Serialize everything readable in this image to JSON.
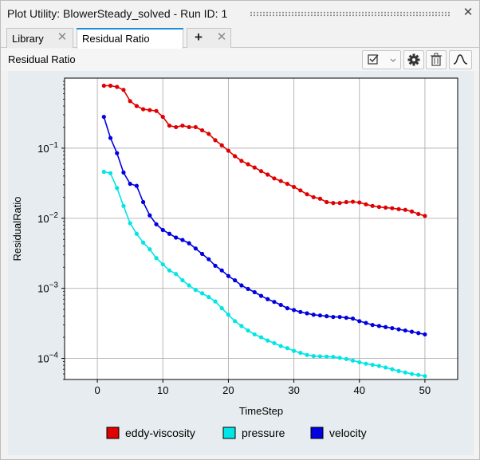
{
  "window": {
    "title": "Plot Utility: BlowerSteady_solved - Run ID: 1"
  },
  "tabs": [
    {
      "label": "Library",
      "active": false
    },
    {
      "label": "Residual Ratio",
      "active": true
    }
  ],
  "toolbar": {
    "panel_label": "Residual Ratio"
  },
  "icons": {
    "close": "close-icon",
    "tab_close": "close-icon",
    "add_tab": "plus-icon",
    "checkbox_menu": "checkbox-dropdown-icon",
    "settings": "gear-icon",
    "delete": "trash-icon",
    "curve": "curve-icon"
  },
  "chart_data": {
    "type": "line",
    "xlabel": "TimeStep",
    "ylabel": "ResidualRatio",
    "yscale": "log",
    "xlim": [
      -5,
      55
    ],
    "ylim": [
      5e-05,
      1.0
    ],
    "xticks": [
      0,
      10,
      20,
      30,
      40,
      50
    ],
    "yticks": [
      0.0001,
      0.001,
      0.01,
      0.1
    ],
    "ytick_labels": [
      "10^-4",
      "10^-3",
      "10^-2",
      "10^-1"
    ],
    "grid": true,
    "legend": "bottom",
    "series": [
      {
        "name": "eddy-viscosity",
        "color": "#e00000",
        "x": [
          1,
          2,
          3,
          4,
          5,
          6,
          7,
          8,
          9,
          10,
          11,
          12,
          13,
          14,
          15,
          16,
          17,
          18,
          19,
          20,
          21,
          22,
          23,
          24,
          25,
          26,
          27,
          28,
          29,
          30,
          31,
          32,
          33,
          34,
          35,
          36,
          37,
          38,
          39,
          40,
          41,
          42,
          43,
          44,
          45,
          46,
          47,
          48,
          49,
          50
        ],
        "y": [
          0.78,
          0.78,
          0.75,
          0.68,
          0.47,
          0.4,
          0.36,
          0.35,
          0.34,
          0.28,
          0.21,
          0.2,
          0.21,
          0.2,
          0.2,
          0.18,
          0.16,
          0.13,
          0.11,
          0.092,
          0.077,
          0.066,
          0.059,
          0.053,
          0.047,
          0.042,
          0.037,
          0.034,
          0.031,
          0.028,
          0.025,
          0.022,
          0.02,
          0.019,
          0.017,
          0.0165,
          0.0165,
          0.017,
          0.0172,
          0.0168,
          0.0158,
          0.015,
          0.0145,
          0.0142,
          0.0139,
          0.0135,
          0.0132,
          0.0125,
          0.0115,
          0.0108
        ]
      },
      {
        "name": "pressure",
        "color": "#00e5e5",
        "x": [
          1,
          2,
          3,
          4,
          5,
          6,
          7,
          8,
          9,
          10,
          11,
          12,
          13,
          14,
          15,
          16,
          17,
          18,
          19,
          20,
          21,
          22,
          23,
          24,
          25,
          26,
          27,
          28,
          29,
          30,
          31,
          32,
          33,
          34,
          35,
          36,
          37,
          38,
          39,
          40,
          41,
          42,
          43,
          44,
          45,
          46,
          47,
          48,
          49,
          50
        ],
        "y": [
          0.046,
          0.044,
          0.027,
          0.015,
          0.0085,
          0.006,
          0.0045,
          0.0036,
          0.0027,
          0.0022,
          0.0018,
          0.0016,
          0.0013,
          0.0011,
          0.00095,
          0.00085,
          0.00075,
          0.00065,
          0.00052,
          0.00042,
          0.00034,
          0.00029,
          0.00025,
          0.00022,
          0.0002,
          0.00018,
          0.000165,
          0.00015,
          0.00014,
          0.000128,
          0.00012,
          0.000112,
          0.000108,
          0.000107,
          0.000106,
          0.000105,
          0.000102,
          9.8e-05,
          9.3e-05,
          8.8e-05,
          8.4e-05,
          8.1e-05,
          7.8e-05,
          7.4e-05,
          7e-05,
          6.6e-05,
          6.3e-05,
          6e-05,
          5.8e-05,
          5.6e-05
        ]
      },
      {
        "name": "velocity",
        "color": "#0000e0",
        "x": [
          1,
          2,
          3,
          4,
          5,
          6,
          7,
          8,
          9,
          10,
          11,
          12,
          13,
          14,
          15,
          16,
          17,
          18,
          19,
          20,
          21,
          22,
          23,
          24,
          25,
          26,
          27,
          28,
          29,
          30,
          31,
          32,
          33,
          34,
          35,
          36,
          37,
          38,
          39,
          40,
          41,
          42,
          43,
          44,
          45,
          46,
          47,
          48,
          49,
          50
        ],
        "y": [
          0.28,
          0.14,
          0.085,
          0.045,
          0.031,
          0.029,
          0.017,
          0.011,
          0.0082,
          0.0068,
          0.006,
          0.0053,
          0.0049,
          0.0044,
          0.0037,
          0.0031,
          0.0026,
          0.0021,
          0.0018,
          0.0015,
          0.0013,
          0.0011,
          0.00098,
          0.00088,
          0.00078,
          0.0007,
          0.00064,
          0.00058,
          0.00052,
          0.00049,
          0.00046,
          0.00044,
          0.00042,
          0.00041,
          0.0004,
          0.00039,
          0.00039,
          0.00038,
          0.00037,
          0.00034,
          0.00032,
          0.0003,
          0.00029,
          0.00028,
          0.00027,
          0.00026,
          0.00025,
          0.00024,
          0.00023,
          0.00022
        ]
      }
    ]
  }
}
